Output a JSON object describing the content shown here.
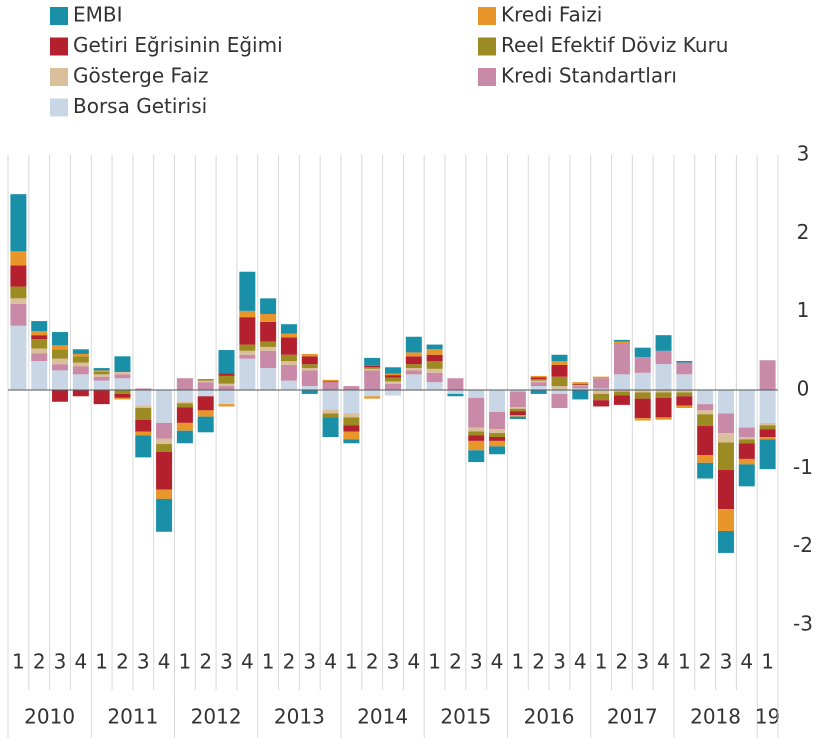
{
  "chart_data": {
    "type": "stacked_bar",
    "categories": [
      "1",
      "2",
      "3",
      "4",
      "1",
      "2",
      "3",
      "4",
      "1",
      "2",
      "3",
      "4",
      "1",
      "2",
      "3",
      "4",
      "1",
      "2",
      "3",
      "4",
      "1",
      "2",
      "3",
      "4",
      "1",
      "2",
      "3",
      "4",
      "1",
      "2",
      "3",
      "4",
      "1",
      "2",
      "3",
      "4",
      "1"
    ],
    "years": [
      "2010",
      "2011",
      "2012",
      "2013",
      "2014",
      "2015",
      "2016",
      "2017",
      "2018",
      "19"
    ],
    "ylim": [
      -3,
      3
    ],
    "yticks": [
      3,
      2,
      1,
      0,
      -1,
      -2,
      -3
    ],
    "series": [
      {
        "name": "EMBI",
        "color": "#1a8fa8",
        "values": [
          0.73,
          0.13,
          0.17,
          0.06,
          0.03,
          0.2,
          -0.28,
          -0.42,
          -0.16,
          -0.2,
          0.3,
          0.5,
          0.2,
          0.12,
          -0.05,
          -0.25,
          -0.05,
          0.1,
          0.08,
          0.2,
          0.06,
          -0.03,
          -0.15,
          -0.1,
          -0.03,
          -0.05,
          0.08,
          -0.12,
          0.0,
          0.02,
          0.12,
          0.2,
          0.02,
          -0.2,
          -0.28,
          -0.28,
          -0.38
        ]
      },
      {
        "name": "Kredi Faizi",
        "color": "#e8962a",
        "values": [
          0.18,
          0.05,
          0.05,
          0.03,
          0.02,
          -0.02,
          -0.05,
          -0.12,
          -0.1,
          -0.08,
          -0.03,
          0.08,
          0.1,
          0.05,
          0.03,
          0.02,
          -0.1,
          -0.03,
          0.02,
          0.05,
          0.07,
          0.0,
          -0.12,
          -0.07,
          -0.02,
          0.02,
          0.05,
          0.02,
          0.02,
          0.02,
          -0.03,
          -0.03,
          -0.03,
          -0.1,
          -0.28,
          -0.07,
          -0.03
        ]
      },
      {
        "name": "Getiri Eğrisinin Eğimi",
        "color": "#b5202e",
        "values": [
          0.27,
          0.05,
          -0.15,
          -0.08,
          -0.18,
          -0.05,
          -0.15,
          -0.48,
          -0.2,
          -0.18,
          0.03,
          0.35,
          0.25,
          0.22,
          0.1,
          0.01,
          -0.08,
          0.02,
          0.03,
          0.1,
          0.08,
          0.0,
          -0.07,
          -0.05,
          -0.05,
          0.02,
          0.15,
          0.01,
          -0.08,
          -0.12,
          -0.25,
          -0.25,
          -0.12,
          -0.37,
          -0.5,
          -0.2,
          -0.1
        ]
      },
      {
        "name": "Reel Efektif Döviz Kuru",
        "color": "#9c8a22",
        "values": [
          0.15,
          0.12,
          0.12,
          0.08,
          0.03,
          -0.05,
          -0.15,
          -0.1,
          -0.05,
          0.02,
          0.1,
          0.08,
          0.07,
          0.08,
          0.05,
          -0.05,
          -0.1,
          0.02,
          0.05,
          0.05,
          0.1,
          0.0,
          -0.05,
          -0.05,
          -0.03,
          0.02,
          0.12,
          0.01,
          -0.08,
          -0.05,
          -0.08,
          -0.07,
          -0.05,
          -0.15,
          -0.35,
          -0.05,
          -0.05
        ]
      },
      {
        "name": "Gösterge Faiz",
        "color": "#d9bf9a",
        "values": [
          0.07,
          0.06,
          0.07,
          0.05,
          0.03,
          0.03,
          -0.03,
          -0.07,
          -0.02,
          0.02,
          0.03,
          0.05,
          0.05,
          0.05,
          0.03,
          -0.05,
          -0.05,
          0.02,
          0.03,
          0.03,
          0.05,
          0.0,
          -0.05,
          -0.05,
          -0.02,
          0.02,
          0.05,
          0.01,
          -0.05,
          -0.02,
          -0.03,
          -0.03,
          -0.03,
          -0.05,
          -0.12,
          -0.03,
          -0.03
        ]
      },
      {
        "name": "Kredi Standartları",
        "color": "#c98aa8",
        "values": [
          0.28,
          0.1,
          0.08,
          0.1,
          0.05,
          0.05,
          0.02,
          -0.2,
          0.15,
          0.1,
          0.05,
          0.05,
          0.22,
          0.2,
          0.2,
          0.1,
          0.05,
          0.25,
          0.08,
          0.05,
          0.12,
          0.15,
          -0.38,
          -0.22,
          -0.2,
          0.05,
          -0.18,
          0.03,
          0.13,
          0.4,
          0.2,
          0.17,
          0.15,
          -0.08,
          -0.25,
          -0.12,
          0.38
        ]
      },
      {
        "name": "Borsa Getirisi",
        "color": "#c8d6e6",
        "values": [
          0.82,
          0.37,
          0.25,
          0.2,
          0.12,
          0.15,
          -0.2,
          -0.42,
          -0.15,
          -0.08,
          -0.18,
          0.4,
          0.28,
          0.12,
          0.05,
          -0.25,
          -0.3,
          -0.08,
          -0.07,
          0.2,
          0.1,
          -0.05,
          -0.1,
          -0.28,
          -0.02,
          0.05,
          -0.05,
          0.02,
          0.02,
          0.2,
          0.22,
          0.33,
          0.2,
          -0.18,
          -0.3,
          -0.48,
          -0.42
        ]
      }
    ]
  }
}
